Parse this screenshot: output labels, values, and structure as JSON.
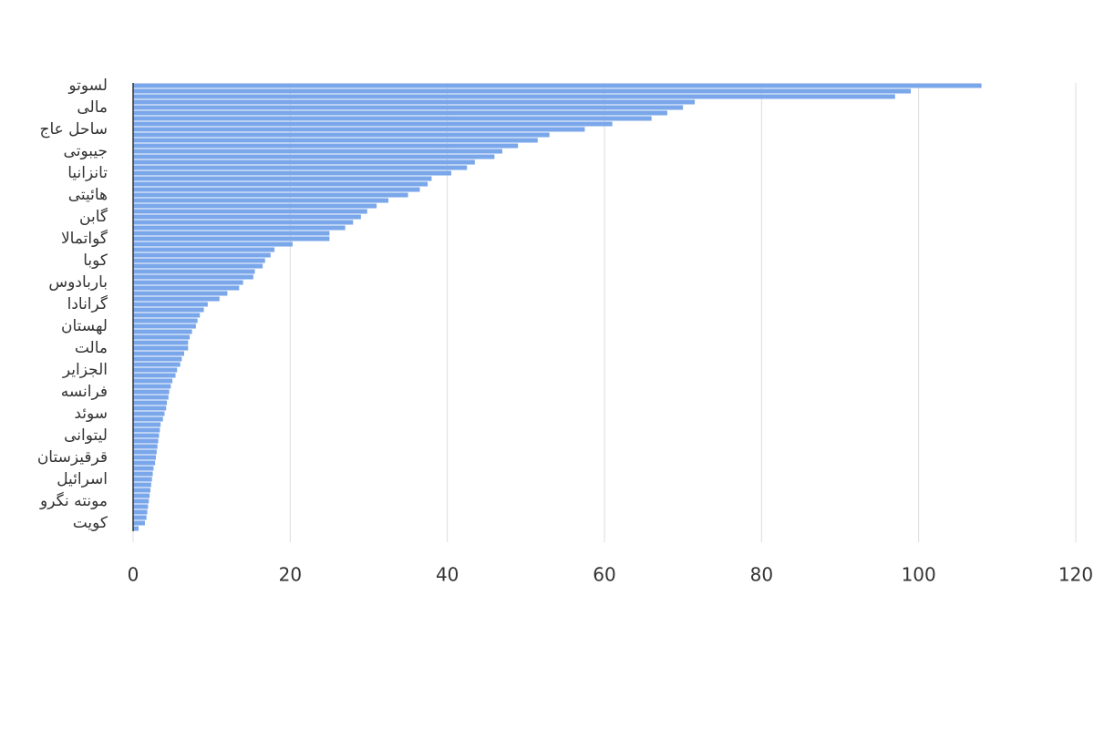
{
  "chart_data": {
    "type": "hbar",
    "color": "#7aa6ea",
    "grid": true,
    "categories": [
      "لسوتو",
      null,
      null,
      null,
      "مالی",
      null,
      null,
      null,
      "ساحل عاج",
      null,
      null,
      null,
      "جیبوتی",
      null,
      null,
      null,
      "تانزانیا",
      null,
      null,
      null,
      "هائیتی",
      null,
      null,
      null,
      "گابن",
      null,
      null,
      null,
      "گواتمالا",
      null,
      null,
      null,
      "کوبا",
      null,
      null,
      null,
      "باربادوس",
      null,
      null,
      null,
      "گرانادا",
      null,
      null,
      null,
      "لهستان",
      null,
      null,
      null,
      "مالت",
      null,
      null,
      null,
      "الجزایر",
      null,
      null,
      null,
      "فرانسه",
      null,
      null,
      null,
      "سوئد",
      null,
      null,
      null,
      "لیتوانی",
      null,
      null,
      null,
      "قرقیزستان",
      null,
      null,
      null,
      "اسرائیل",
      null,
      null,
      null,
      "مونته نگرو",
      null,
      null,
      null,
      "کویت",
      null
    ],
    "values": [
      108,
      99,
      97,
      71.5,
      70,
      68,
      66,
      61,
      57.5,
      53,
      51.5,
      49,
      47,
      46,
      43.5,
      42.5,
      40.5,
      38,
      37.5,
      36.5,
      35,
      32.5,
      31,
      29.8,
      29,
      28,
      27,
      25,
      25,
      20.3,
      18,
      17.5,
      16.8,
      16.5,
      15.5,
      15.3,
      14,
      13.5,
      12,
      11,
      9.5,
      9,
      8.5,
      8.2,
      8,
      7.5,
      7.2,
      7,
      7,
      6.5,
      6.2,
      6,
      5.6,
      5.4,
      5,
      4.8,
      4.6,
      4.5,
      4.3,
      4.2,
      4,
      3.8,
      3.5,
      3.4,
      3.3,
      3.2,
      3.1,
      3,
      2.9,
      2.8,
      2.6,
      2.5,
      2.4,
      2.3,
      2.2,
      2.1,
      2,
      1.9,
      1.8,
      1.7,
      1.5,
      0.7
    ],
    "xlim": [
      0,
      120
    ],
    "xticks": [
      0,
      20,
      40,
      60,
      80,
      100,
      120
    ]
  }
}
